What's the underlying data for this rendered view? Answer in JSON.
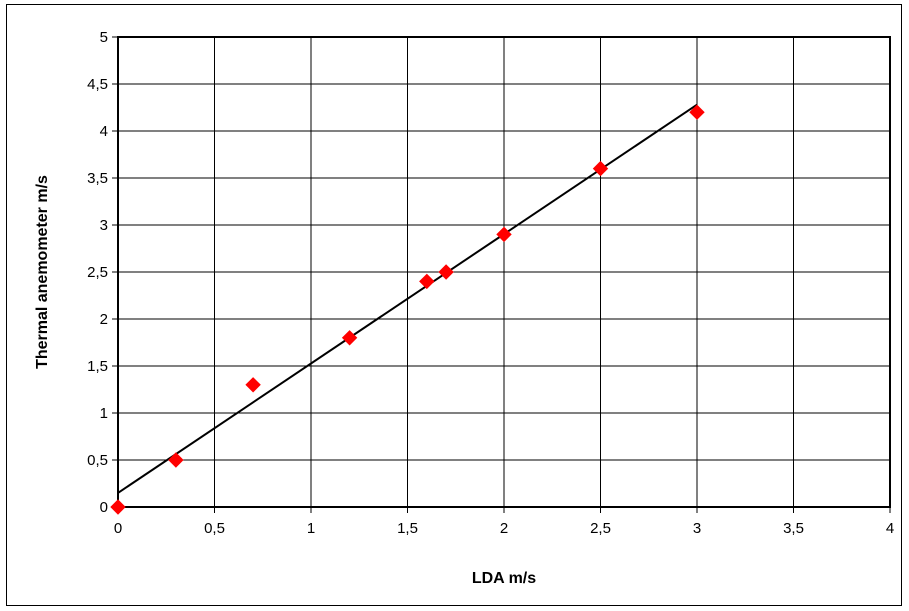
{
  "chart_data": {
    "type": "scatter",
    "title": "",
    "xlabel": "LDA m/s",
    "ylabel": "Thermal anemometer m/s",
    "xlim": [
      0,
      4
    ],
    "ylim": [
      0,
      5
    ],
    "x_ticks": [
      0,
      0.5,
      1,
      1.5,
      2,
      2.5,
      3,
      3.5,
      4
    ],
    "y_ticks": [
      0,
      0.5,
      1,
      1.5,
      2,
      2.5,
      3,
      3.5,
      4,
      4.5,
      5
    ],
    "x_tick_labels": [
      "0",
      "0,5",
      "1",
      "1,5",
      "2",
      "2,5",
      "3",
      "3,5",
      "4"
    ],
    "y_tick_labels": [
      "0",
      "0,5",
      "1",
      "1,5",
      "2",
      "2,5",
      "3",
      "3,5",
      "4",
      "4,5",
      "5"
    ],
    "grid": true,
    "legend": "none",
    "series": [
      {
        "marker": "diamond",
        "color": "#ff0000",
        "x": [
          0,
          0.3,
          0.7,
          1.2,
          1.6,
          1.7,
          2.0,
          2.5,
          3.0
        ],
        "y": [
          0,
          0.5,
          1.3,
          1.8,
          2.4,
          2.5,
          2.9,
          3.6,
          4.2
        ]
      }
    ],
    "trendline": {
      "color": "#000000",
      "x": [
        0,
        3.0
      ],
      "y": [
        0.15,
        4.28
      ]
    }
  }
}
